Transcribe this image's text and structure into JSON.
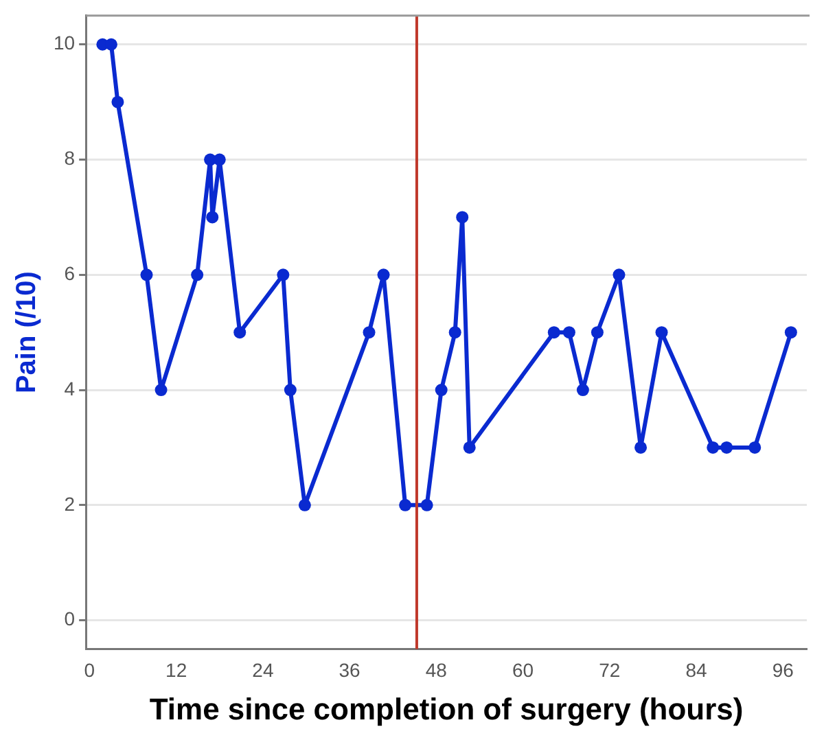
{
  "chart_data": {
    "type": "line",
    "xlabel": "Time since completion of surgery (hours)",
    "ylabel": "Pain (/10)",
    "x": [
      1.8,
      3,
      3.9,
      7.9,
      9.9,
      14.9,
      16.7,
      17,
      18,
      20.8,
      26.8,
      27.8,
      29.8,
      38.7,
      40.7,
      43.7,
      46.7,
      48.7,
      50.6,
      51.6,
      52.6,
      64.3,
      66.4,
      68.3,
      70.3,
      73.3,
      76.3,
      79.2,
      86.3,
      88.2,
      92.1,
      97.1
    ],
    "series": [
      {
        "color": "#0a2ad0",
        "values": [
          10,
          10,
          9,
          6,
          4,
          6,
          8,
          7,
          8,
          5,
          6,
          4,
          2,
          5,
          6,
          2,
          2,
          4,
          5,
          7,
          3,
          5,
          5,
          4,
          5,
          6,
          3,
          5,
          3,
          3,
          3,
          5
        ]
      }
    ],
    "xlim": [
      -0.5,
      99.3
    ],
    "xticks": [
      0,
      12,
      24,
      36,
      48,
      60,
      72,
      84,
      96
    ],
    "ylim": [
      -0.5,
      10.5
    ],
    "yticks": [
      0,
      2,
      4,
      6,
      8,
      10
    ],
    "grid": "y",
    "marker": "circle",
    "line_style": "solid",
    "legend": false,
    "ref_lines": [
      {
        "axis": "x",
        "value": 45.3,
        "color": "#c0392b"
      }
    ]
  }
}
